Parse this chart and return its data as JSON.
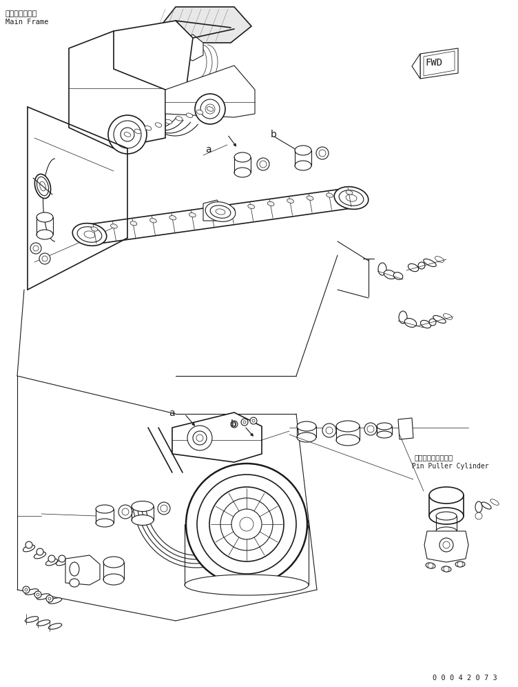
{
  "background_color": "#ffffff",
  "line_color": "#1a1a1a",
  "label_top_left_japanese": "メインフレーム",
  "label_top_left_english": "Main Frame",
  "label_fwd": "FWD",
  "label_pin_puller_japanese": "ピンプーラシリンダ",
  "label_pin_puller_english": "Pin Puller Cylinder",
  "label_a1": "a",
  "label_b1": "b",
  "label_a2": "a",
  "label_b2": "b",
  "part_number": "0 0 0 4 2 0 7 3",
  "fig_width": 7.52,
  "fig_height": 9.96,
  "dpi": 100
}
